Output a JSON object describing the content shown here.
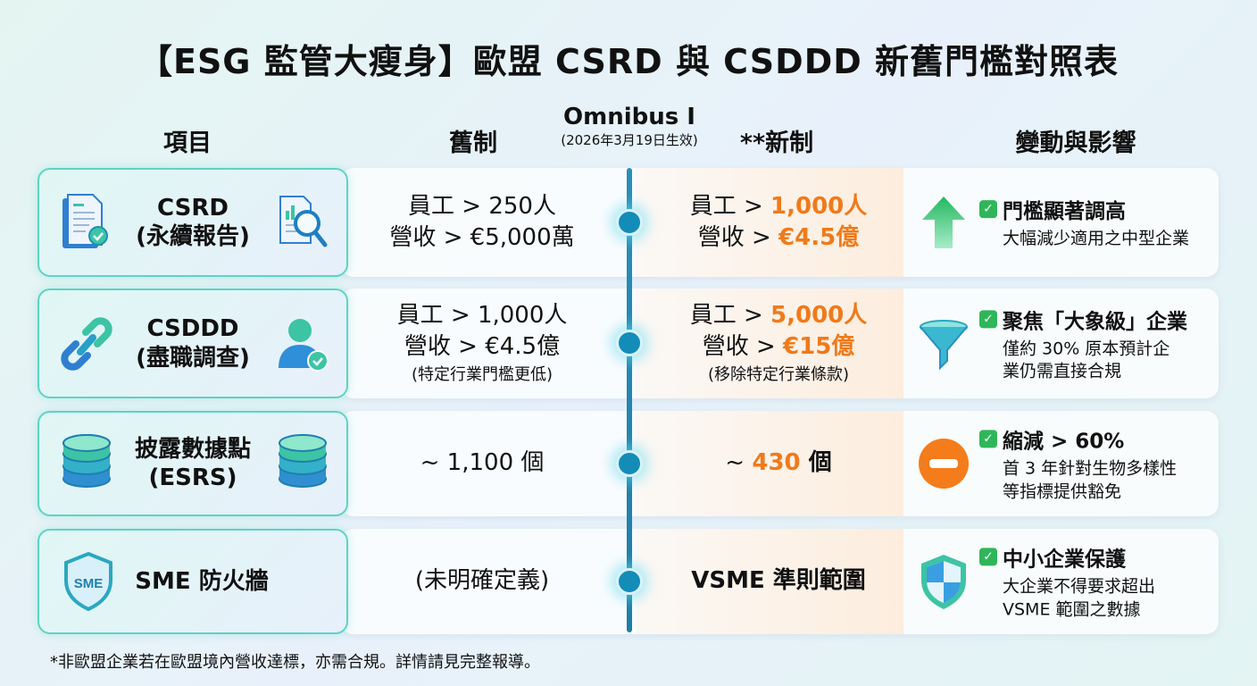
{
  "title": "【ESG 監管大瘦身】歐盟 CSRD 與 CSDDD 新舊門檻對照表",
  "headers": {
    "item": "項目",
    "old": "舊制",
    "omnibus": "Omnibus I",
    "omnibus_note": "(2026年3月19日生效)",
    "new": "**新制",
    "impact": "變動與影響"
  },
  "rows": [
    {
      "name": "CSRD",
      "sub": "(永續報告)",
      "old": [
        "員工 > 250人",
        "營收 > €5,000萬"
      ],
      "old_note": "",
      "new_prefix": [
        "員工 > ",
        "營收 > "
      ],
      "new_hl": [
        "1,000人",
        "€4.5億"
      ],
      "new_note": "",
      "impact_title": "門檻顯著調高",
      "impact_desc": [
        "大幅減少適用之中型企業"
      ],
      "impact_icon": "arrow-up-icon"
    },
    {
      "name": "CSDDD",
      "sub": "(盡職調查)",
      "old": [
        "員工 > 1,000人",
        "營收 > €4.5億"
      ],
      "old_note": "(特定行業門檻更低)",
      "new_prefix": [
        "員工 > ",
        "營收 > "
      ],
      "new_hl": [
        "5,000人",
        "€15億"
      ],
      "new_note": "(移除特定行業條款)",
      "impact_title": "聚焦「大象級」企業",
      "impact_desc": [
        "僅約 30% 原本預計企",
        "業仍需直接合規"
      ],
      "impact_icon": "funnel-icon"
    },
    {
      "name": "披露數據點",
      "sub": "(ESRS)",
      "old": [
        "~ 1,100 個"
      ],
      "new_prefix": [
        "~ "
      ],
      "new_hl": [
        "430"
      ],
      "new_suffix": " 個",
      "impact_title": "縮減 > 60%",
      "impact_desc": [
        "首 3 年針對生物多樣性",
        "等指標提供豁免"
      ],
      "impact_icon": "minus-circle-icon"
    },
    {
      "name": "SME 防火牆",
      "old": [
        "(未明確定義)"
      ],
      "new_text": "VSME 準則範圍",
      "impact_title": "中小企業保護",
      "impact_desc": [
        "大企業不得要求超出",
        "VSME 範圍之數據"
      ],
      "impact_icon": "shield-icon"
    }
  ],
  "footnote": "*非歐盟企業若在歐盟境內營收達標，亦需合規。詳情請見完整報導。",
  "colors": {
    "accent_orange": "#f07a1a",
    "teal_border": "#5fd3c4",
    "timeline": "#138cb8",
    "check_green": "#2fb65a"
  }
}
